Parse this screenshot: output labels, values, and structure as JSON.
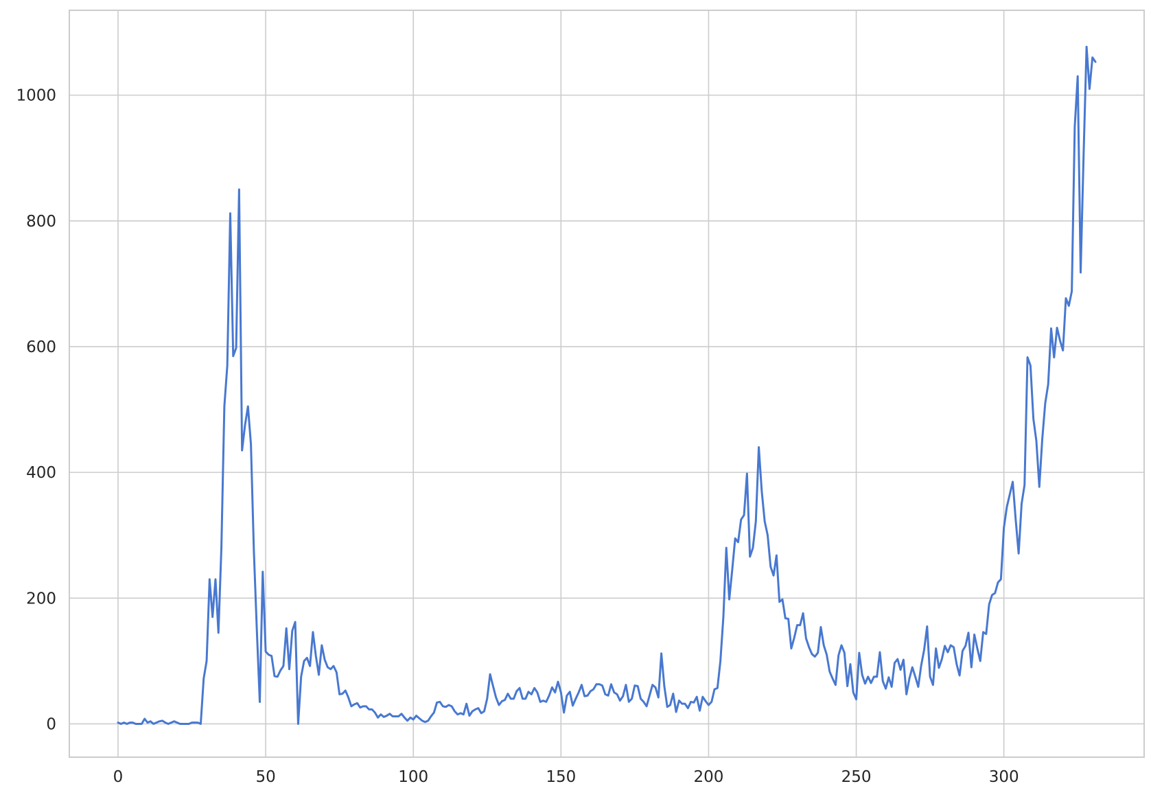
{
  "chart_data": {
    "type": "line",
    "title": "",
    "xlabel": "",
    "ylabel": "",
    "xlim": [
      -16.5,
      347.5
    ],
    "ylim": [
      -53,
      1135
    ],
    "grid": true,
    "x_ticks": [
      0,
      50,
      100,
      150,
      200,
      250,
      300
    ],
    "y_ticks": [
      0,
      200,
      400,
      600,
      800,
      1000
    ],
    "x_tick_labels": [
      "0",
      "50",
      "100",
      "150",
      "200",
      "250",
      "300"
    ],
    "y_tick_labels": [
      "0",
      "200",
      "400",
      "600",
      "800",
      "1000"
    ],
    "series": [
      {
        "color": "#4878d0",
        "x_start": 0,
        "x_step": 1,
        "values": [
          2,
          0,
          2,
          0,
          2,
          2,
          0,
          0,
          0,
          8,
          2,
          4,
          0,
          2,
          4,
          5,
          2,
          0,
          2,
          4,
          2,
          0,
          0,
          0,
          0,
          2,
          2,
          2,
          0,
          72,
          100,
          230,
          170,
          230,
          145,
          280,
          505,
          570,
          812,
          585,
          598,
          850,
          435,
          475,
          505,
          445,
          275,
          150,
          35,
          242,
          115,
          110,
          108,
          76,
          75,
          85,
          92,
          152,
          87,
          148,
          162,
          0,
          75,
          100,
          105,
          92,
          146,
          108,
          78,
          125,
          102,
          90,
          87,
          92,
          82,
          47,
          48,
          53,
          42,
          28,
          31,
          33,
          26,
          28,
          28,
          23,
          23,
          18,
          10,
          15,
          11,
          13,
          16,
          12,
          12,
          12,
          16,
          10,
          5,
          10,
          7,
          13,
          9,
          5,
          3,
          5,
          12,
          18,
          34,
          35,
          28,
          27,
          30,
          28,
          20,
          15,
          17,
          15,
          32,
          13,
          20,
          23,
          25,
          17,
          20,
          40,
          79,
          60,
          42,
          30,
          36,
          38,
          48,
          40,
          40,
          52,
          57,
          40,
          40,
          51,
          47,
          57,
          50,
          35,
          37,
          35,
          45,
          58,
          50,
          67,
          50,
          18,
          45,
          51,
          29,
          40,
          50,
          62,
          44,
          45,
          52,
          55,
          63,
          63,
          61,
          47,
          45,
          63,
          50,
          47,
          37,
          44,
          62,
          35,
          40,
          61,
          60,
          40,
          35,
          28,
          45,
          62,
          58,
          42,
          112,
          60,
          27,
          30,
          48,
          19,
          37,
          32,
          32,
          25,
          35,
          34,
          43,
          21,
          43,
          36,
          30,
          35,
          55,
          57,
          100,
          170,
          280,
          198,
          245,
          295,
          289,
          325,
          332,
          398,
          266,
          280,
          322,
          440,
          370,
          322,
          300,
          250,
          236,
          268,
          194,
          198,
          168,
          167,
          120,
          137,
          157,
          157,
          176,
          136,
          122,
          111,
          107,
          113,
          154,
          125,
          110,
          83,
          72,
          62,
          109,
          125,
          113,
          60,
          95,
          50,
          39,
          113,
          78,
          64,
          75,
          65,
          75,
          75,
          114,
          68,
          56,
          74,
          59,
          97,
          103,
          86,
          102,
          47,
          72,
          90,
          75,
          59,
          93,
          118,
          155,
          75,
          62,
          120,
          89,
          103,
          124,
          114,
          125,
          122,
          95,
          77,
          116,
          124,
          145,
          90,
          142,
          120,
          100,
          146,
          143,
          190,
          205,
          208,
          225,
          230,
          312,
          345,
          365,
          385,
          325,
          271,
          350,
          380,
          583,
          570,
          485,
          450,
          377,
          453,
          510,
          540,
          629,
          583,
          630,
          610,
          594,
          677,
          665,
          688,
          950,
          1030,
          718,
          905,
          1077,
          1010,
          1060,
          1053
        ]
      }
    ]
  }
}
